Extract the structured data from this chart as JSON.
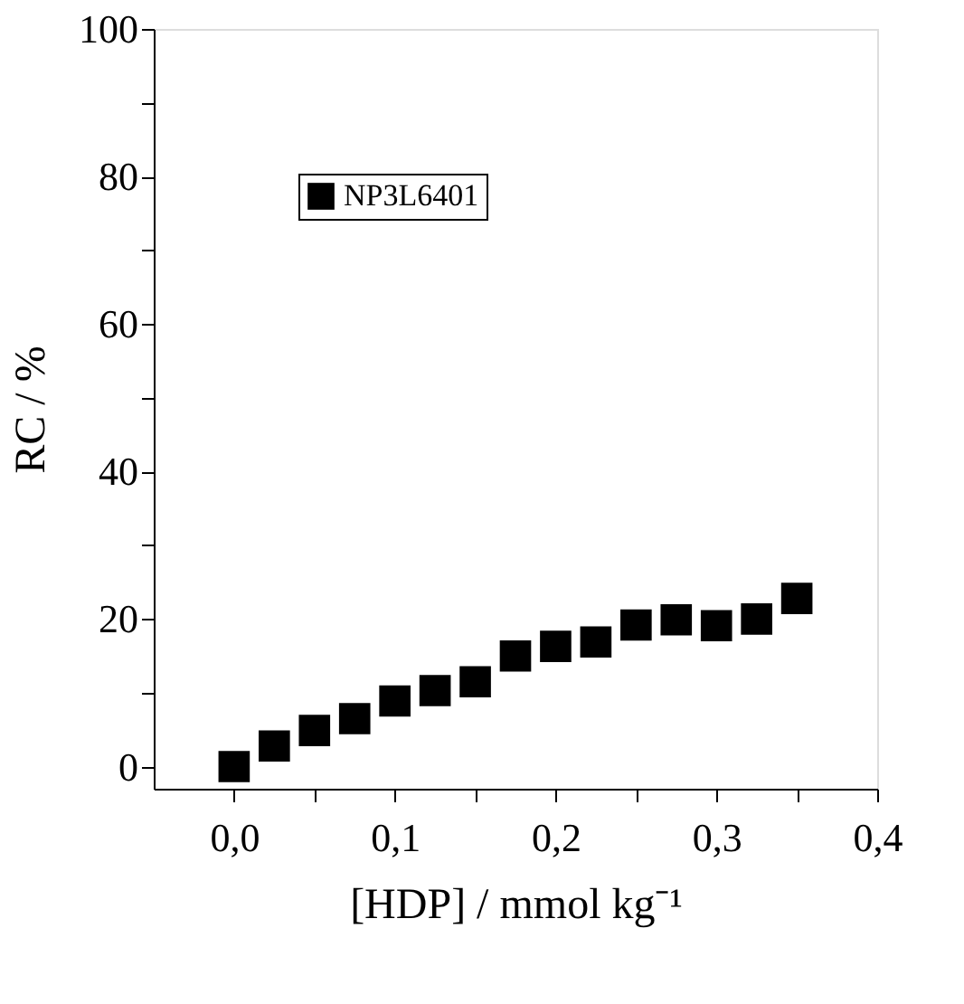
{
  "chart_data": {
    "type": "scatter",
    "xlabel": "[HDP] / mmol kg⁻¹",
    "ylabel": "RC / %",
    "x": [
      0,
      0.025,
      0.05,
      0.075,
      0.1,
      0.125,
      0.15,
      0.175,
      0.2,
      0.225,
      0.25,
      0.275,
      0.3,
      0.325,
      0.35
    ],
    "series": [
      {
        "name": "NP3L6401",
        "color": "#000000",
        "values": [
          0,
          2.8,
          4.9,
          6.5,
          8.9,
          10.3,
          11.5,
          15.0,
          16.3,
          16.9,
          19.2,
          19.9,
          19.1,
          20.0,
          22.8
        ]
      }
    ],
    "xlim": [
      -0.05,
      0.4
    ],
    "xticks": [
      {
        "value": 0,
        "label": "0,0"
      },
      {
        "value": 0.05,
        "label": null
      },
      {
        "value": 0.1,
        "label": "0,1"
      },
      {
        "value": 0.15,
        "label": null
      },
      {
        "value": 0.2,
        "label": "0,2"
      },
      {
        "value": 0.25,
        "label": null
      },
      {
        "value": 0.3,
        "label": "0,3"
      },
      {
        "value": 0.35,
        "label": null
      },
      {
        "value": 0.4,
        "label": "0,4"
      }
    ],
    "ylim": [
      -3,
      100
    ],
    "yticks": [
      0,
      {
        "value": 10,
        "label": null
      },
      20,
      {
        "value": 30,
        "label": null
      },
      40,
      {
        "value": 50,
        "label": null
      },
      60,
      {
        "value": 70,
        "label": null
      },
      80,
      {
        "value": 90,
        "label": null
      },
      100
    ],
    "marker": "square",
    "legend": "top left",
    "grid": false
  }
}
